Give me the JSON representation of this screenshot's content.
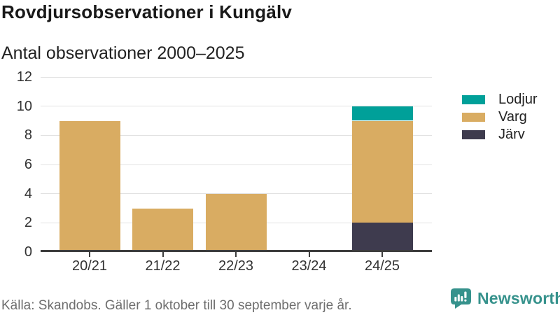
{
  "header": {
    "title": "Rovdjursobservationer i Kungälv",
    "subtitle": "Antal observationer 2000–2025"
  },
  "chart_data": {
    "type": "bar",
    "stacked": true,
    "categories": [
      "20/21",
      "21/22",
      "22/23",
      "23/24",
      "24/25"
    ],
    "series": [
      {
        "name": "Järv",
        "color": "#3e3b4e",
        "values": [
          0,
          0,
          0,
          0,
          2
        ]
      },
      {
        "name": "Varg",
        "color": "#d9ac62",
        "values": [
          9,
          3,
          4,
          0,
          7
        ]
      },
      {
        "name": "Lodjur",
        "color": "#00a099",
        "values": [
          0,
          0,
          0,
          0,
          1
        ]
      }
    ],
    "title": "Rovdjursobservationer i Kungälv",
    "subtitle": "Antal observationer 2000–2025",
    "xlabel": "",
    "ylabel": "",
    "ylim": [
      0,
      12
    ],
    "yticks": [
      0,
      2,
      4,
      6,
      8,
      10,
      12
    ],
    "grid": "horizontal",
    "legend_position": "right"
  },
  "legend": {
    "items": [
      {
        "label": "Lodjur",
        "color": "#00a099"
      },
      {
        "label": "Varg",
        "color": "#d9ac62"
      },
      {
        "label": "Järv",
        "color": "#3e3b4e"
      }
    ]
  },
  "footer": {
    "source": "Källa: Skandobs. Gäller 1 oktober till 30 september varje år.",
    "brand": "Newsworthy",
    "brand_color": "#36928c"
  },
  "colors": {
    "gridline": "#e2e2e2",
    "axis": "#3d3d3d",
    "text": "#333333",
    "title": "#191919"
  }
}
